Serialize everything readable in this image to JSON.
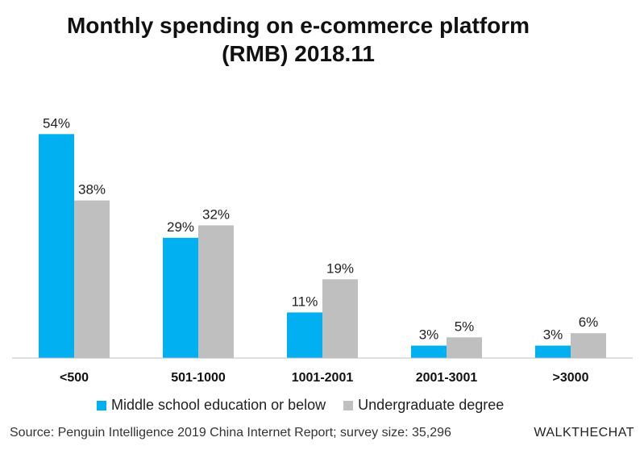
{
  "chart_data": {
    "type": "bar",
    "title_line1": "Monthly spending on e-commerce platform",
    "title_line2": "(RMB) 2018.11",
    "categories": [
      "<500",
      "501-1000",
      "1001-2001",
      "2001-3001",
      ">3000"
    ],
    "series": [
      {
        "name": "Middle school education or below",
        "color": "#00b0f0",
        "values": [
          54,
          29,
          11,
          3,
          3
        ],
        "labels": [
          "54%",
          "29%",
          "11%",
          "3%",
          "3%"
        ]
      },
      {
        "name": "Undergraduate degree",
        "color": "#bfbfbf",
        "values": [
          38,
          32,
          19,
          5,
          6
        ],
        "labels": [
          "38%",
          "32%",
          "19%",
          "5%",
          "6%"
        ]
      }
    ],
    "ylim": [
      0,
      60
    ],
    "xlabel": "",
    "ylabel": "",
    "grid": false,
    "legend_position": "bottom"
  },
  "footer": {
    "source": "Source: Penguin Intelligence 2019 China Internet Report; survey size: 35,296",
    "brand": "WALKTHECHAT"
  }
}
